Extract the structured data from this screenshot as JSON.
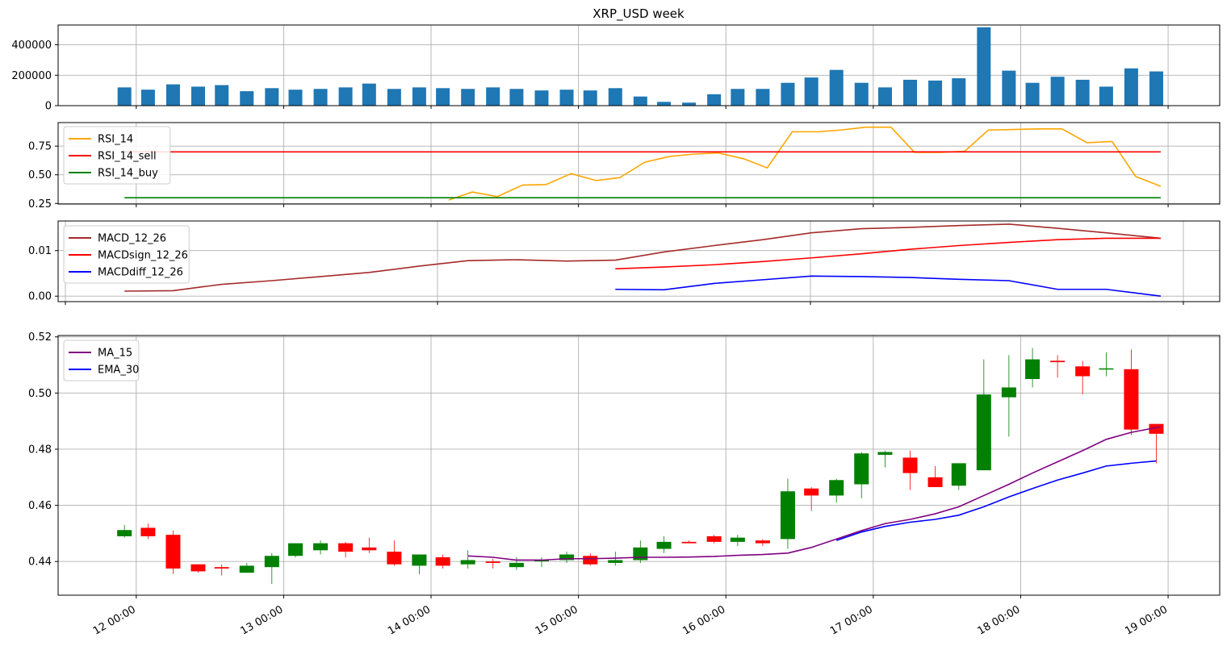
{
  "title": "XRP_USD  week",
  "x_ticks": [
    "12 00:00",
    "13 00:00",
    "14 00:00",
    "15 00:00",
    "16 00:00",
    "17 00:00",
    "18 00:00",
    "19 00:00"
  ],
  "colors": {
    "volume": "#1f77b4",
    "rsi": "#ffa500",
    "rsi_sell": "#ff0000",
    "rsi_buy": "#008000",
    "macd": "#a52a2a",
    "macd_sign": "#ff0000",
    "macd_diff": "#0000ff",
    "ma15": "#800080",
    "ema30": "#0000ff",
    "up": "#008000",
    "down": "#ff0000"
  },
  "chart_data": [
    {
      "type": "bar",
      "panel": "volume",
      "title": "XRP_USD  week",
      "x": [
        11.92,
        12.08,
        12.25,
        12.42,
        12.58,
        12.75,
        12.92,
        13.08,
        13.25,
        13.42,
        13.58,
        13.75,
        13.92,
        14.08,
        14.25,
        14.42,
        14.58,
        14.75,
        14.92,
        15.08,
        15.25,
        15.42,
        15.58,
        15.75,
        15.92,
        16.08,
        16.25,
        16.42,
        16.58,
        16.75,
        16.92,
        17.08,
        17.25,
        17.42,
        17.58,
        17.75,
        17.92,
        18.08,
        18.25,
        18.42,
        18.58,
        18.75,
        18.92
      ],
      "values": [
        120000,
        105000,
        140000,
        125000,
        135000,
        95000,
        115000,
        105000,
        110000,
        120000,
        145000,
        110000,
        120000,
        115000,
        110000,
        120000,
        110000,
        100000,
        105000,
        100000,
        115000,
        60000,
        25000,
        20000,
        75000,
        110000,
        110000,
        150000,
        185000,
        235000,
        150000,
        120000,
        170000,
        165000,
        180000,
        515000,
        230000,
        150000,
        190000,
        170000,
        125000,
        245000,
        225000
      ],
      "ylim": [
        0,
        530000
      ],
      "yticks": [
        "0",
        "200000",
        "400000"
      ],
      "ytick_values": [
        0,
        200000,
        400000
      ]
    },
    {
      "type": "line",
      "panel": "rsi",
      "series": [
        {
          "name": "RSI_14",
          "x": [
            14.12,
            14.28,
            14.45,
            14.62,
            14.78,
            14.95,
            15.12,
            15.28,
            15.45,
            15.62,
            15.78,
            15.95,
            16.12,
            16.28,
            16.45,
            16.62,
            16.78,
            16.95,
            17.12,
            17.28,
            17.45,
            17.62,
            17.78,
            17.95,
            18.12,
            18.28,
            18.45,
            18.62,
            18.78,
            18.95
          ],
          "values": [
            0.28,
            0.35,
            0.31,
            0.41,
            0.415,
            0.51,
            0.45,
            0.475,
            0.61,
            0.66,
            0.68,
            0.69,
            0.64,
            0.56,
            0.875,
            0.875,
            0.89,
            0.915,
            0.915,
            0.695,
            0.695,
            0.705,
            0.89,
            0.895,
            0.9,
            0.9,
            0.78,
            0.79,
            0.485,
            0.4
          ]
        },
        {
          "name": "RSI_14_sell",
          "x": [
            11.92,
            18.95
          ],
          "values": [
            0.7,
            0.7
          ]
        },
        {
          "name": "RSI_14_buy",
          "x": [
            11.92,
            18.95
          ],
          "values": [
            0.3,
            0.3
          ]
        }
      ],
      "ylim": [
        0.245,
        0.955
      ],
      "yticks": [
        "0.25",
        "0.50",
        "0.75"
      ],
      "ytick_values": [
        0.25,
        0.5,
        0.75
      ]
    },
    {
      "type": "line",
      "panel": "macd",
      "series": [
        {
          "name": "MACD_12_26",
          "x": [
            11.92,
            12.25,
            12.58,
            12.92,
            13.25,
            13.58,
            13.92,
            14.25,
            14.58,
            14.92,
            15.25,
            15.58,
            15.92,
            16.25,
            16.58,
            16.92,
            17.25,
            17.58,
            17.92,
            18.25,
            18.58,
            18.95
          ],
          "values": [
            0.0011,
            0.0012,
            0.0026,
            0.0034,
            0.0043,
            0.0052,
            0.0066,
            0.0078,
            0.008,
            0.0077,
            0.0079,
            0.0097,
            0.0111,
            0.0124,
            0.0139,
            0.0148,
            0.0151,
            0.0155,
            0.0158,
            0.0149,
            0.0139,
            0.0127
          ]
        },
        {
          "name": "MACDsign_12_26",
          "x": [
            15.25,
            15.58,
            15.92,
            16.25,
            16.58,
            16.92,
            17.25,
            17.58,
            17.92,
            18.25,
            18.58,
            18.95
          ],
          "values": [
            0.006,
            0.0064,
            0.0069,
            0.0076,
            0.0084,
            0.0093,
            0.0103,
            0.0111,
            0.0118,
            0.0124,
            0.0127,
            0.0127
          ]
        },
        {
          "name": "MACDdiff_12_26",
          "x": [
            15.25,
            15.58,
            15.92,
            16.25,
            16.58,
            16.92,
            17.25,
            17.58,
            17.92,
            18.25,
            18.58,
            18.95
          ],
          "values": [
            0.0015,
            0.0014,
            0.0028,
            0.0036,
            0.0044,
            0.0043,
            0.0041,
            0.0037,
            0.0034,
            0.0015,
            0.0015,
            0.0
          ]
        }
      ],
      "ylim": [
        -0.0012,
        0.0165
      ],
      "yticks": [
        "0.00",
        "0.01"
      ],
      "ytick_values": [
        0,
        0.01
      ]
    },
    {
      "type": "candlestick",
      "panel": "price",
      "x": [
        11.92,
        12.08,
        12.25,
        12.42,
        12.58,
        12.75,
        12.92,
        13.08,
        13.25,
        13.42,
        13.58,
        13.75,
        13.92,
        14.08,
        14.25,
        14.42,
        14.58,
        14.75,
        14.92,
        15.08,
        15.25,
        15.42,
        15.58,
        15.75,
        15.92,
        16.08,
        16.25,
        16.42,
        16.58,
        16.75,
        16.92,
        17.08,
        17.25,
        17.42,
        17.58,
        17.75,
        17.92,
        18.08,
        18.25,
        18.42,
        18.58,
        18.75,
        18.92
      ],
      "open": [
        0.449,
        0.452,
        0.4495,
        0.439,
        0.438,
        0.436,
        0.438,
        0.442,
        0.444,
        0.4465,
        0.445,
        0.4435,
        0.4385,
        0.4415,
        0.439,
        0.44,
        0.438,
        0.4405,
        0.4405,
        0.442,
        0.4395,
        0.4405,
        0.4445,
        0.447,
        0.449,
        0.447,
        0.4475,
        0.448,
        0.466,
        0.4635,
        0.4675,
        0.478,
        0.477,
        0.47,
        0.467,
        0.4725,
        0.4985,
        0.505,
        0.5115,
        0.5095,
        0.5085,
        0.5085,
        0.489
      ],
      "high": [
        0.453,
        0.4535,
        0.451,
        0.439,
        0.439,
        0.4395,
        0.443,
        0.4465,
        0.4475,
        0.447,
        0.4485,
        0.4475,
        0.442,
        0.4425,
        0.444,
        0.441,
        0.4415,
        0.4415,
        0.4435,
        0.443,
        0.4435,
        0.4475,
        0.449,
        0.4475,
        0.4495,
        0.4495,
        0.448,
        0.4695,
        0.4665,
        0.4695,
        0.479,
        0.4795,
        0.4795,
        0.474,
        0.4745,
        0.512,
        0.5135,
        0.516,
        0.5135,
        0.5115,
        0.5145,
        0.5155,
        0.489
      ],
      "low": [
        0.4485,
        0.448,
        0.4355,
        0.436,
        0.435,
        0.436,
        0.432,
        0.4415,
        0.4425,
        0.4415,
        0.443,
        0.4385,
        0.4355,
        0.4375,
        0.4375,
        0.4375,
        0.437,
        0.438,
        0.4395,
        0.4385,
        0.4385,
        0.4395,
        0.443,
        0.4465,
        0.4465,
        0.4455,
        0.4455,
        0.4445,
        0.458,
        0.461,
        0.4625,
        0.4735,
        0.4655,
        0.4665,
        0.4655,
        0.4725,
        0.4845,
        0.502,
        0.5055,
        0.4995,
        0.506,
        0.485,
        0.475
      ],
      "close": [
        0.4512,
        0.449,
        0.4375,
        0.4365,
        0.4375,
        0.4385,
        0.442,
        0.4465,
        0.4465,
        0.4435,
        0.444,
        0.439,
        0.4425,
        0.4385,
        0.4405,
        0.4395,
        0.4395,
        0.4405,
        0.4425,
        0.439,
        0.4405,
        0.445,
        0.447,
        0.4465,
        0.447,
        0.4485,
        0.4465,
        0.465,
        0.4635,
        0.469,
        0.4785,
        0.479,
        0.4715,
        0.4665,
        0.475,
        0.4995,
        0.502,
        0.512,
        0.511,
        0.506,
        0.5088,
        0.487,
        0.4855
      ],
      "ma": [
        {
          "name": "MA_15",
          "x": [
            14.25,
            14.42,
            14.58,
            14.75,
            14.92,
            15.08,
            15.25,
            15.42,
            15.58,
            15.75,
            15.92,
            16.08,
            16.25,
            16.42,
            16.58,
            16.75,
            16.92,
            17.08,
            17.25,
            17.42,
            17.58,
            17.75,
            17.92,
            18.08,
            18.25,
            18.42,
            18.58,
            18.75,
            18.95
          ],
          "values": [
            0.442,
            0.4415,
            0.4405,
            0.4405,
            0.441,
            0.441,
            0.4412,
            0.4415,
            0.4415,
            0.4416,
            0.4418,
            0.4422,
            0.4425,
            0.443,
            0.445,
            0.448,
            0.451,
            0.4535,
            0.455,
            0.457,
            0.4595,
            0.4635,
            0.4675,
            0.4715,
            0.4755,
            0.4795,
            0.4835,
            0.486,
            0.488
          ]
        },
        {
          "name": "EMA_30",
          "x": [
            16.75,
            16.92,
            17.08,
            17.25,
            17.42,
            17.58,
            17.75,
            17.92,
            18.08,
            18.25,
            18.42,
            18.58,
            18.75,
            18.92
          ],
          "values": [
            0.4475,
            0.4505,
            0.4525,
            0.454,
            0.455,
            0.4565,
            0.4595,
            0.463,
            0.466,
            0.469,
            0.4715,
            0.474,
            0.475,
            0.4758
          ]
        }
      ],
      "ylim": [
        0.428,
        0.5205
      ],
      "yticks": [
        "0.44",
        "0.46",
        "0.48",
        "0.50",
        "0.52"
      ],
      "ytick_values": [
        0.44,
        0.46,
        0.48,
        0.5,
        0.52
      ]
    }
  ],
  "legends": {
    "rsi": [
      "RSI_14",
      "RSI_14_sell",
      "RSI_14_buy"
    ],
    "macd": [
      "MACD_12_26",
      "MACDsign_12_26",
      "MACDdiff_12_26"
    ],
    "price": [
      "MA_15",
      "EMA_30"
    ]
  }
}
